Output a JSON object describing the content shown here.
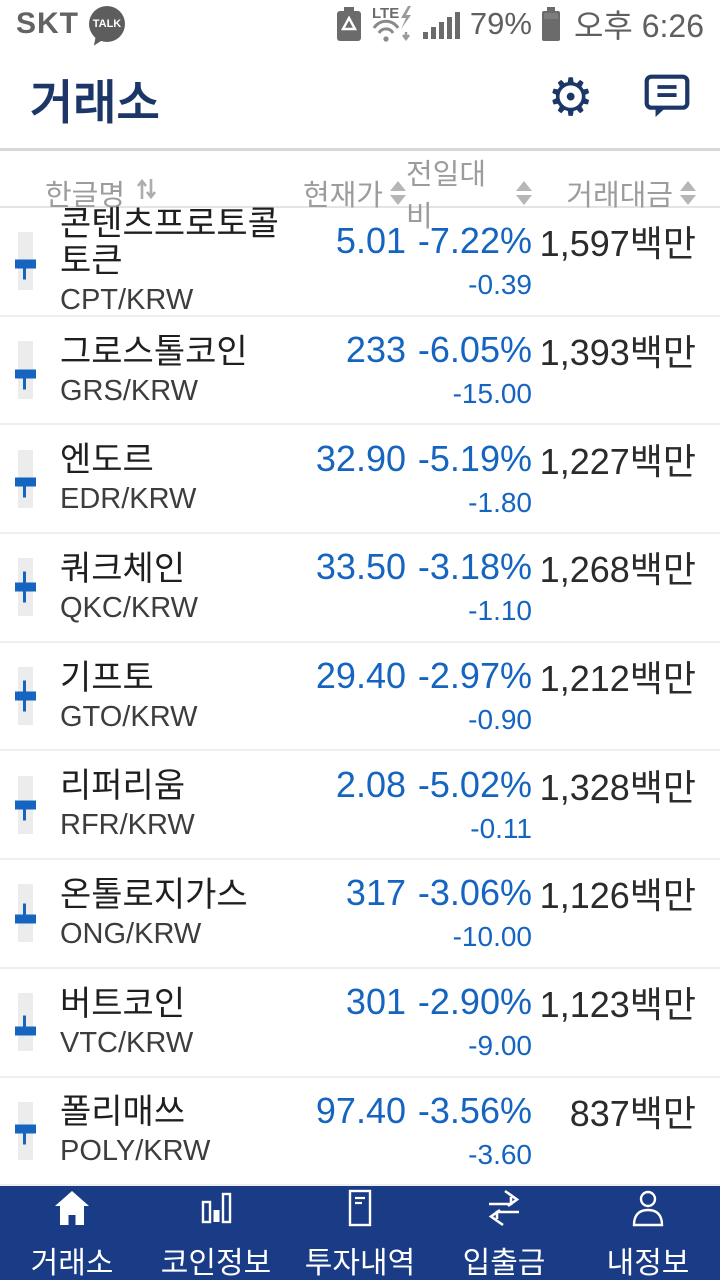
{
  "colors": {
    "down_blue": "#1565c0",
    "navy": "#1c3667",
    "nav_bg": "#1a3b85",
    "header_gray": "#9c9c9c"
  },
  "status_bar": {
    "carrier": "SKT",
    "talk_badge": "TALK",
    "lte_label": "LTE",
    "battery_percent": "79%",
    "time": "오후 6:26"
  },
  "header": {
    "title": "거래소",
    "gear_glyph": "⚙"
  },
  "table": {
    "columns": [
      {
        "label": "한글명"
      },
      {
        "label": "현재가"
      },
      {
        "label": "전일대비"
      },
      {
        "label": "거래대금"
      }
    ],
    "rows": [
      {
        "name": "콘텐츠프로토콜토큰",
        "pair": "CPT/KRW",
        "price": "5.01",
        "change_pct": "-7.22%",
        "change_val": "-0.39",
        "volume": "1,597백만",
        "marker_top_pct": 55,
        "wick": "down"
      },
      {
        "name": "그로스톨코인",
        "pair": "GRS/KRW",
        "price": "233",
        "change_pct": "-6.05%",
        "change_val": "-15.00",
        "volume": "1,393백만",
        "marker_top_pct": 56,
        "wick": "down"
      },
      {
        "name": "엔도르",
        "pair": "EDR/KRW",
        "price": "32.90",
        "change_pct": "-5.19%",
        "change_val": "-1.80",
        "volume": "1,227백만",
        "marker_top_pct": 56,
        "wick": "down"
      },
      {
        "name": "쿼크체인",
        "pair": "QKC/KRW",
        "price": "33.50",
        "change_pct": "-3.18%",
        "change_val": "-1.10",
        "volume": "1,268백만",
        "marker_top_pct": 50,
        "wick": "both"
      },
      {
        "name": "기프토",
        "pair": "GTO/KRW",
        "price": "29.40",
        "change_pct": "-2.97%",
        "change_val": "-0.90",
        "volume": "1,212백만",
        "marker_top_pct": 50,
        "wick": "both"
      },
      {
        "name": "리퍼리움",
        "pair": "RFR/KRW",
        "price": "2.08",
        "change_pct": "-5.02%",
        "change_val": "-0.11",
        "volume": "1,328백만",
        "marker_top_pct": 50,
        "wick": "down"
      },
      {
        "name": "온톨로지가스",
        "pair": "ONG/KRW",
        "price": "317",
        "change_pct": "-3.06%",
        "change_val": "-10.00",
        "volume": "1,126백만",
        "marker_top_pct": 60,
        "wick": "up"
      },
      {
        "name": "버트코인",
        "pair": "VTC/KRW",
        "price": "301",
        "change_pct": "-2.90%",
        "change_val": "-9.00",
        "volume": "1,123백만",
        "marker_top_pct": 66,
        "wick": "up"
      },
      {
        "name": "폴리매쓰",
        "pair": "POLY/KRW",
        "price": "97.40",
        "change_pct": "-3.56%",
        "change_val": "-3.60",
        "volume": "837백만",
        "marker_top_pct": 46,
        "wick": "down"
      }
    ]
  },
  "bottom_nav": {
    "items": [
      {
        "label": "거래소",
        "icon": "home",
        "active": true
      },
      {
        "label": "코인정보",
        "icon": "bar-chart",
        "active": false
      },
      {
        "label": "투자내역",
        "icon": "document",
        "active": false
      },
      {
        "label": "입출금",
        "icon": "transfer",
        "active": false
      },
      {
        "label": "내정보",
        "icon": "person",
        "active": false
      }
    ]
  }
}
